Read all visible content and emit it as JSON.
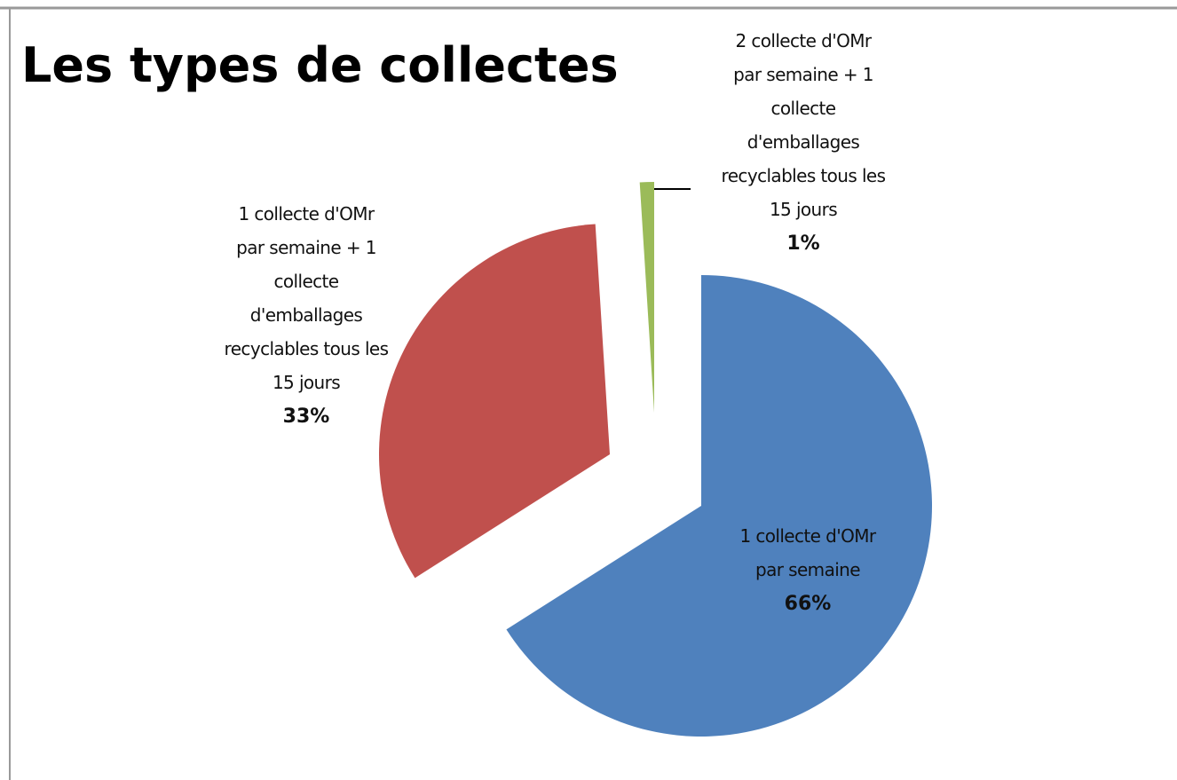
{
  "chart_data": {
    "type": "pie",
    "title": "Les types de collectes",
    "categories": [
      "1 collecte d'OMr\npar semaine",
      "1 collecte d'OMr\npar semaine + 1\ncollecte\nd'emballages\nrecyclables tous les\n15 jours",
      "2 collecte d'OMr\npar semaine + 1\ncollecte\nd'emballages\nrecyclables tous les\n15 jours"
    ],
    "values": [
      66,
      33,
      1
    ],
    "value_labels": [
      "66%",
      "33%",
      "1%"
    ],
    "colors": [
      "#4f81bd",
      "#c0504d",
      "#9bbb59"
    ]
  }
}
